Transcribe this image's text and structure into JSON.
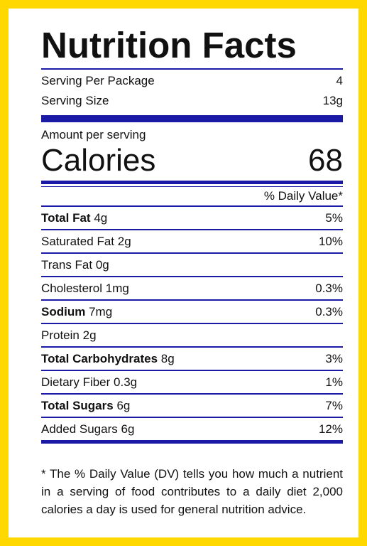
{
  "title": "Nutrition Facts",
  "serving": {
    "per_package_label": "Serving Per Package",
    "per_package_value": "4",
    "size_label": "Serving Size",
    "size_value": "13g"
  },
  "amount_per_serving": "Amount per serving",
  "calories": {
    "label": "Calories",
    "value": "68"
  },
  "dv_header": "% Daily Value*",
  "nutrients": [
    {
      "name": "Total Fat",
      "amount": "4g",
      "dv": "5%",
      "bold": true
    },
    {
      "name": "Saturated Fat",
      "amount": "2g",
      "dv": "10%",
      "bold": false
    },
    {
      "name": "Trans Fat",
      "amount": "0g",
      "dv": "",
      "bold": false
    },
    {
      "name": "Cholesterol",
      "amount": "1mg",
      "dv": "0.3%",
      "bold": false
    },
    {
      "name": "Sodium",
      "amount": "7mg",
      "dv": "0.3%",
      "bold": true
    },
    {
      "name": "Protein",
      "amount": "2g",
      "dv": "",
      "bold": false
    },
    {
      "name": "Total Carbohydrates",
      "amount": "8g",
      "dv": "3%",
      "bold": true
    },
    {
      "name": "Dietary Fiber",
      "amount": "0.3g",
      "dv": "1%",
      "bold": false
    },
    {
      "name": "Total Sugars",
      "amount": "6g",
      "dv": "7%",
      "bold": true
    },
    {
      "name": "Added Sugars",
      "amount": "6g",
      "dv": "12%",
      "bold": false
    }
  ],
  "footnote": "* The % Daily Value (DV) tells you how much a nutrient in a serving of food contributes to a daily diet 2,000 calories a day is used for general nutrition advice.",
  "colors": {
    "border": "#FFD800",
    "rule": "#1a1aa6"
  }
}
